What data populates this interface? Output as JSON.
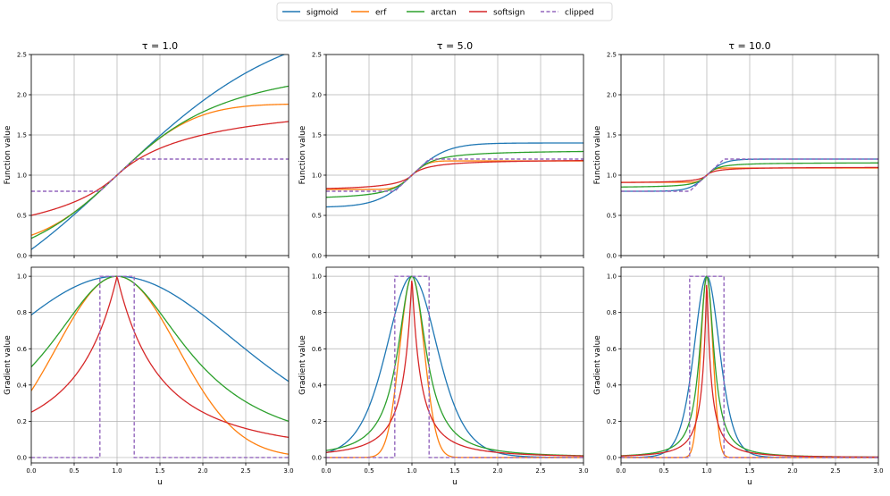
{
  "chart_data": {
    "type": "line",
    "legend": {
      "placement": "top-center",
      "entries": [
        {
          "name": "sigmoid",
          "color": "#1f77b4",
          "style": "solid"
        },
        {
          "name": "erf",
          "color": "#ff7f0e",
          "style": "solid"
        },
        {
          "name": "arctan",
          "color": "#2ca02c",
          "style": "solid"
        },
        {
          "name": "softsign",
          "color": "#d62728",
          "style": "solid"
        },
        {
          "name": "clipped",
          "color": "#9467bd",
          "style": "dashed"
        }
      ]
    },
    "columns": [
      {
        "title": "τ = 1.0",
        "tau": 1.0
      },
      {
        "title": "τ = 5.0",
        "tau": 5.0
      },
      {
        "title": "τ = 10.0",
        "tau": 10.0
      }
    ],
    "rows": [
      {
        "ylabel": "Function value",
        "kind": "function",
        "ylim": [
          0.0,
          2.5
        ],
        "yticks": [
          "0.0",
          "0.5",
          "1.0",
          "1.5",
          "2.0",
          "2.5"
        ]
      },
      {
        "ylabel": "Gradient value",
        "kind": "gradient",
        "ylim": [
          -0.03,
          1.05
        ],
        "yticks": [
          "0.0",
          "0.2",
          "0.4",
          "0.6",
          "0.8",
          "1.0"
        ]
      }
    ],
    "xlabel": "u",
    "xlim": [
      0.0,
      3.0
    ],
    "xticks": [
      "0.0",
      "0.5",
      "1.0",
      "1.5",
      "2.0",
      "2.5",
      "3.0"
    ],
    "clip_range": [
      0.8,
      1.2
    ],
    "grid": true
  }
}
